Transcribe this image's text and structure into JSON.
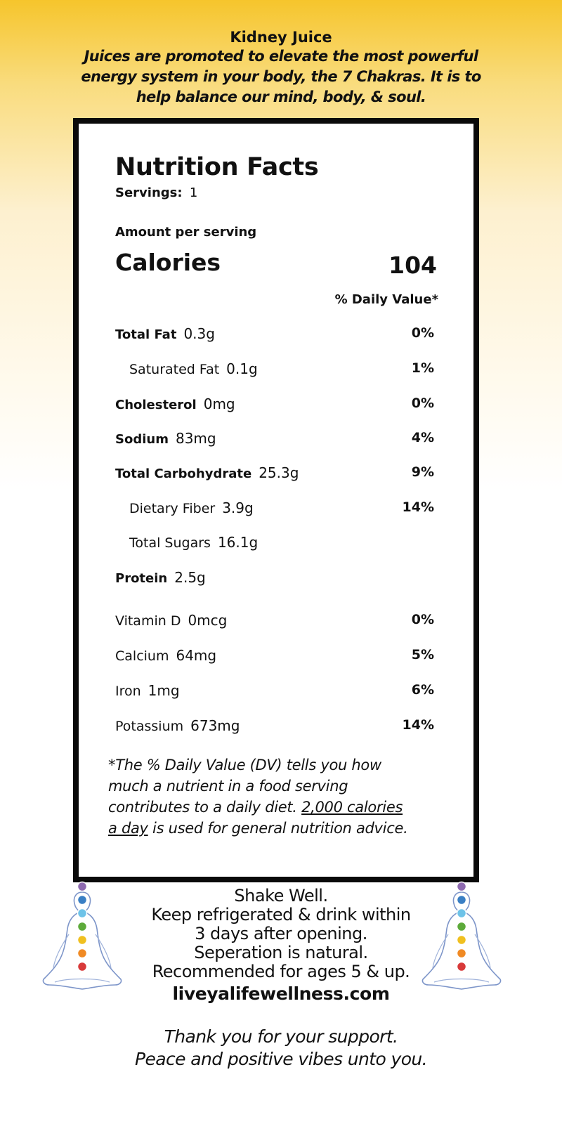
{
  "header": {
    "title": "Kidney Juice",
    "tagline_lines": [
      "Juices are promoted to elevate the most powerful",
      "energy system in your body, the 7 Chakras. It is to",
      "help balance our mind, body, & soul."
    ]
  },
  "label": {
    "heading": "Nutrition Facts",
    "servings_label": "Servings:",
    "servings_value": "1",
    "amount_per_serving": "Amount per serving",
    "calories_label": "Calories",
    "calories_value": "104",
    "daily_value_header": "% Daily Value*",
    "nutrients": [
      {
        "name": "Total Fat",
        "amount": "0.3g",
        "dv": "0%"
      },
      {
        "name": "Saturated Fat",
        "amount": "0.1g",
        "dv": "1%"
      },
      {
        "name": "Cholesterol",
        "amount": "0mg",
        "dv": "0%"
      },
      {
        "name": "Sodium",
        "amount": "83mg",
        "dv": "4%"
      },
      {
        "name": "Total Carbohydrate",
        "amount": "25.3g",
        "dv": "9%"
      },
      {
        "name": "Dietary Fiber",
        "amount": "3.9g",
        "dv": "14%"
      },
      {
        "name": "Total Sugars",
        "amount": "16.1g",
        "dv": ""
      },
      {
        "name": "Protein",
        "amount": "2.5g",
        "dv": ""
      },
      {
        "name": "Vitamin D",
        "amount": "0mcg",
        "dv": "0%"
      },
      {
        "name": "Calcium",
        "amount": "64mg",
        "dv": "5%"
      },
      {
        "name": "Iron",
        "amount": "1mg",
        "dv": "6%"
      },
      {
        "name": "Potassium",
        "amount": "673mg",
        "dv": "14%"
      }
    ],
    "footnote": {
      "line1": "*The % Daily Value (DV) tells you how",
      "line2": "much a nutrient in a food serving",
      "line3_pre": "contributes to a daily diet. ",
      "line3_underlined": "2,000 calories",
      "line4_underlined": "a day",
      "line4_post": " is used for general nutrition advice."
    }
  },
  "instructions": {
    "lines": [
      "Shake Well.",
      "Keep refrigerated & drink within",
      "3 days after opening.",
      "Seperation is natural.",
      "Recommended for ages 5 & up."
    ],
    "website": "liveyalifewellness.com"
  },
  "thanks": {
    "line1": "Thank you for your support.",
    "line2": "Peace and positive vibes unto you."
  },
  "chakra_colors": [
    "#8e6ab0",
    "#3a7fc4",
    "#6ec3e8",
    "#5daa3a",
    "#f0c020",
    "#f08a24",
    "#d83a3a"
  ]
}
